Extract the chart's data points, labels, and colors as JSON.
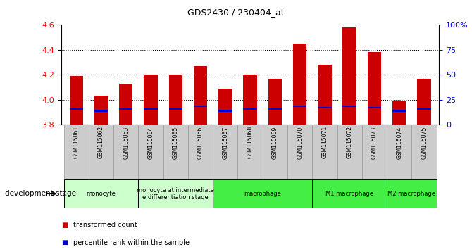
{
  "title": "GDS2430 / 230404_at",
  "samples": [
    "GSM115061",
    "GSM115062",
    "GSM115063",
    "GSM115064",
    "GSM115065",
    "GSM115066",
    "GSM115067",
    "GSM115068",
    "GSM115069",
    "GSM115070",
    "GSM115071",
    "GSM115072",
    "GSM115073",
    "GSM115074",
    "GSM115075"
  ],
  "red_values": [
    4.19,
    4.03,
    4.13,
    4.2,
    4.2,
    4.27,
    4.09,
    4.2,
    4.17,
    4.45,
    4.28,
    4.58,
    4.38,
    3.99,
    4.17
  ],
  "blue_values": [
    3.925,
    3.91,
    3.925,
    3.925,
    3.925,
    3.945,
    3.91,
    3.925,
    3.925,
    3.945,
    3.935,
    3.945,
    3.935,
    3.91,
    3.925
  ],
  "ymin": 3.8,
  "ymax": 4.6,
  "yticks": [
    3.8,
    4.0,
    4.2,
    4.4,
    4.6
  ],
  "right_yticks": [
    0,
    25,
    50,
    75,
    100
  ],
  "right_yticklabels": [
    "0",
    "25",
    "50",
    "75",
    "100%"
  ],
  "groups": [
    {
      "label": "monocyte",
      "start": 0,
      "end": 2,
      "color": "#ccffcc"
    },
    {
      "label": "monocyte at intermediate\ne differentiation stage",
      "start": 3,
      "end": 5,
      "color": "#ccffcc"
    },
    {
      "label": "macrophage",
      "start": 6,
      "end": 9,
      "color": "#44ee44"
    },
    {
      "label": "M1 macrophage",
      "start": 10,
      "end": 12,
      "color": "#44ee44"
    },
    {
      "label": "M2 macrophage",
      "start": 13,
      "end": 14,
      "color": "#44ee44"
    }
  ],
  "base": 3.8,
  "bar_width": 0.55,
  "red_color": "#cc0000",
  "blue_color": "#0000cc",
  "xtick_bg": "#cccccc",
  "legend_red": "transformed count",
  "legend_blue": "percentile rank within the sample",
  "dev_stage_label": "development stage"
}
